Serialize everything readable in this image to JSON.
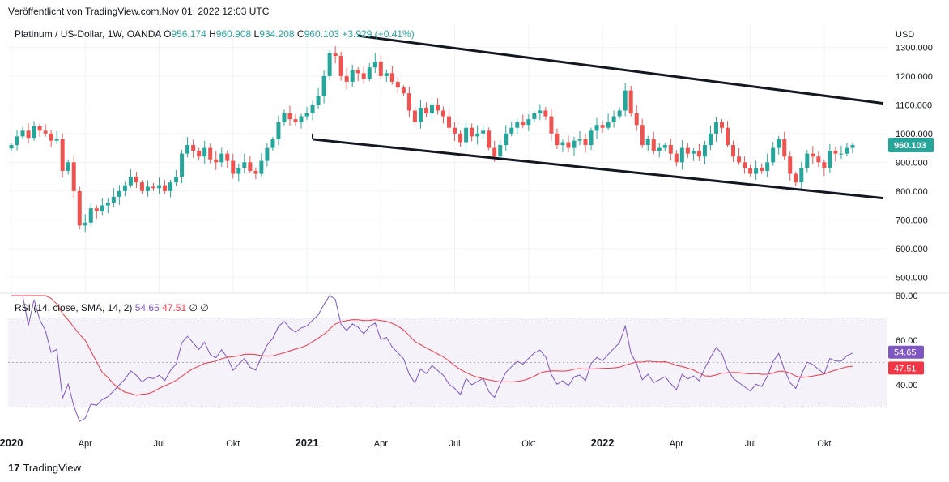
{
  "header": {
    "published": "Veröffentlicht von TradingView.com,Nov 01, 2022 12:03 UTC"
  },
  "symbol": {
    "name": "Platinum / US-Dollar, 1W, OANDA",
    "o_label": "O",
    "o_value": "956.174",
    "h_label": "H",
    "h_value": "960.908",
    "l_label": "L",
    "l_value": "934.208",
    "c_label": "C",
    "c_value": "960.103",
    "change": "+3.929 (+0.41%)"
  },
  "brand": {
    "logo": "17",
    "name": "TradingView"
  },
  "colors": {
    "up": "#26a69a",
    "down": "#ef5350",
    "rsi": "#7e57c2",
    "rsi_ma": "#f23645",
    "trendline": "#131722",
    "rsi_band": "#7e57c2"
  },
  "chart_data": [
    {
      "type": "candlestick",
      "title": "Platinum / US-Dollar, 1W, OANDA",
      "currency_label": "USD",
      "ylim": [
        450,
        1380
      ],
      "y_ticks": [
        "1300.000",
        "1200.000",
        "1100.000",
        "1000.000",
        "900.000",
        "800.000",
        "700.000",
        "600.000",
        "500.000"
      ],
      "y_tick_values": [
        1300,
        1200,
        1100,
        1000,
        900,
        800,
        700,
        600,
        500
      ],
      "last_price_label": "960.103",
      "last_price": 960.103,
      "x_labels": [
        "2020",
        "Apr",
        "Jul",
        "Okt",
        "2021",
        "Apr",
        "Jul",
        "Okt",
        "2022",
        "Apr",
        "Jul",
        "Okt"
      ],
      "x_label_weeks": [
        0,
        13,
        26,
        39,
        52,
        65,
        78,
        91,
        104,
        117,
        130,
        143
      ],
      "week_count": 153,
      "closes": [
        960,
        990,
        1010,
        985,
        1025,
        1010,
        1000,
        975,
        980,
        870,
        900,
        800,
        680,
        690,
        740,
        730,
        750,
        760,
        780,
        800,
        820,
        850,
        830,
        800,
        815,
        810,
        820,
        800,
        830,
        850,
        930,
        960,
        940,
        920,
        950,
        910,
        900,
        930,
        905,
        860,
        880,
        900,
        870,
        860,
        905,
        950,
        980,
        1040,
        1070,
        1050,
        1040,
        1060,
        1070,
        1100,
        1130,
        1200,
        1280,
        1270,
        1200,
        1180,
        1220,
        1210,
        1190,
        1230,
        1250,
        1200,
        1210,
        1180,
        1160,
        1140,
        1080,
        1040,
        1090,
        1070,
        1100,
        1080,
        1060,
        1020,
        1000,
        970,
        1020,
        990,
        1000,
        1010,
        950,
        920,
        960,
        1000,
        1020,
        1040,
        1030,
        1050,
        1070,
        1080,
        1060,
        1000,
        960,
        970,
        950,
        975,
        980,
        960,
        1010,
        1030,
        1020,
        1040,
        1060,
        1080,
        1150,
        1070,
        1030,
        960,
        980,
        940,
        950,
        960,
        930,
        900,
        950,
        930,
        940,
        920,
        960,
        1000,
        1040,
        1020,
        960,
        920,
        900,
        880,
        860,
        880,
        870,
        900,
        950,
        980,
        920,
        860,
        830,
        880,
        930,
        920,
        900,
        880,
        940,
        930,
        930,
        950,
        960
      ],
      "rsi": {
        "label": "RSI (14, close, SMA, 14, 2)",
        "value": "54.65",
        "ma_value": "47.51",
        "ylim": [
          20,
          80
        ],
        "y_ticks": [
          "80.00",
          "60.00",
          "40.00"
        ],
        "y_tick_values": [
          80,
          60,
          40
        ],
        "overbought": 70,
        "middle": 50,
        "oversold": 30,
        "symbol_1": "∅",
        "symbol_2": "∅"
      }
    }
  ]
}
